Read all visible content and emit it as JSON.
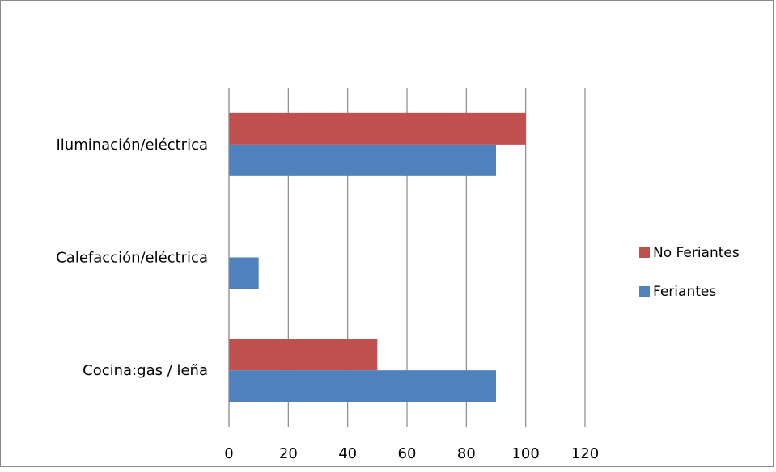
{
  "chart_data": {
    "type": "bar",
    "orientation": "horizontal",
    "categories": [
      "Iluminación/eléctrica",
      "Calefacción/eléctrica",
      "Cocina:gas / leña"
    ],
    "series": [
      {
        "name": "No Feriantes",
        "color": "#c0504d",
        "values": [
          100,
          0,
          50
        ]
      },
      {
        "name": "Feriantes",
        "color": "#4f81bd",
        "values": [
          90,
          10,
          90
        ]
      }
    ],
    "xlim": [
      0,
      120
    ],
    "x_ticks": [
      "0",
      "20",
      "40",
      "60",
      "80",
      "100",
      "120"
    ],
    "grid": true,
    "legend_placement": "right"
  }
}
